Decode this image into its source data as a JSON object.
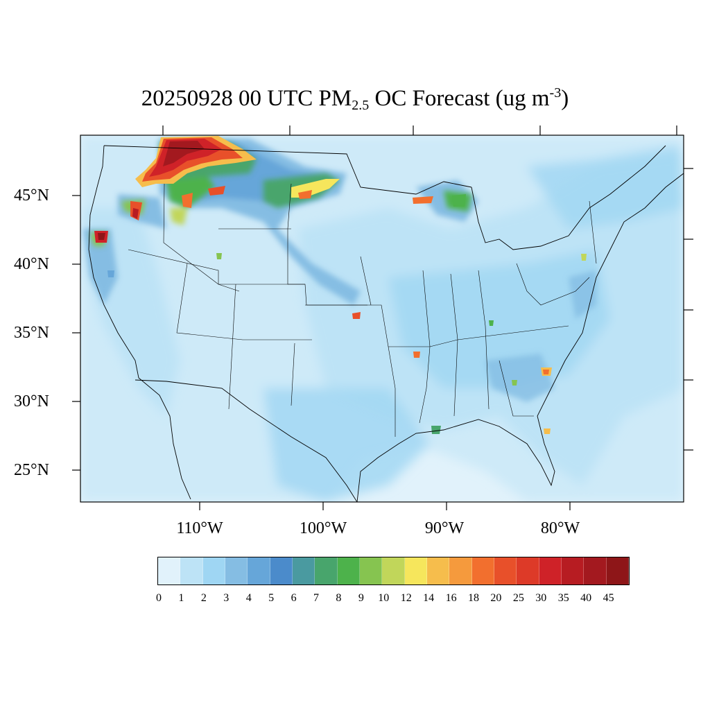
{
  "title": {
    "prefix": "20250928 00 UTC PM",
    "sub": "2.5",
    "middle": " OC Forecast (ug m",
    "sup": "-3",
    "suffix": ")"
  },
  "lat_labels": [
    "45°N",
    "40°N",
    "35°N",
    "30°N",
    "25°N"
  ],
  "lon_labels": [
    "110°W",
    "100°W",
    "90°W",
    "80°W"
  ],
  "colorbar": {
    "labels": [
      "0",
      "1",
      "2",
      "3",
      "4",
      "5",
      "6",
      "7",
      "8",
      "9",
      "10",
      "12",
      "14",
      "16",
      "18",
      "20",
      "25",
      "30",
      "35",
      "40",
      "45"
    ],
    "colors": [
      "#e1f2fb",
      "#bde3f6",
      "#9fd6f3",
      "#85bde3",
      "#66a6d9",
      "#4b8bcb",
      "#4a9aa0",
      "#48a56c",
      "#4db24b",
      "#86c450",
      "#c1d65a",
      "#f6e65c",
      "#f6bd4c",
      "#f59a3d",
      "#f26f2e",
      "#e8502a",
      "#dd3a28",
      "#cf2228",
      "#b71c22",
      "#a3191f",
      "#8e1618"
    ]
  },
  "map": {
    "background_color": "#e1f2fb",
    "region": "Contiguous United States",
    "lat_range_deg_N": [
      22.5,
      49.5
    ],
    "lon_range_deg_W": [
      121,
      67
    ]
  }
}
